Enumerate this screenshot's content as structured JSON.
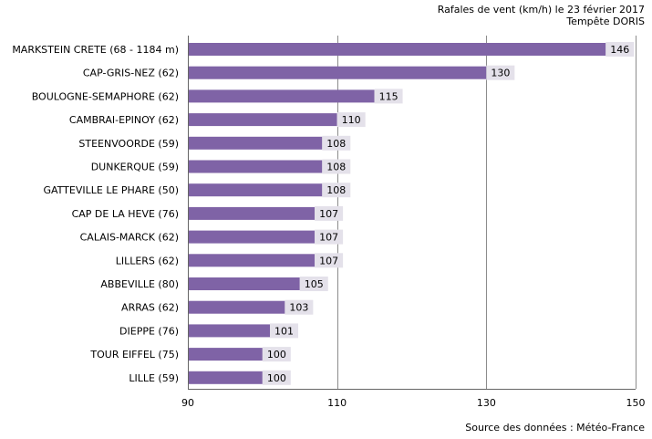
{
  "chart_data": {
    "type": "bar",
    "orientation": "horizontal",
    "title": "Rafales de vent (km/h) le 23 février 2017",
    "subtitle": "Tempête DORIS",
    "source": "Source des données : Météo-France",
    "categories": [
      "MARKSTEIN CRETE (68 - 1184 m)",
      "CAP-GRIS-NEZ (62)",
      "BOULOGNE-SEMAPHORE (62)",
      "CAMBRAI-EPINOY (62)",
      "STEENVOORDE (59)",
      "DUNKERQUE (59)",
      "GATTEVILLE LE PHARE (50)",
      "CAP DE LA HEVE (76)",
      "CALAIS-MARCK (62)",
      "LILLERS (62)",
      "ABBEVILLE (80)",
      "ARRAS (62)",
      "DIEPPE (76)",
      "TOUR EIFFEL (75)",
      "LILLE (59)"
    ],
    "values": [
      146,
      130,
      115,
      110,
      108,
      108,
      108,
      107,
      107,
      107,
      105,
      103,
      101,
      100,
      100
    ],
    "xlim": [
      90,
      150
    ],
    "xticks": [
      90,
      110,
      130,
      150
    ],
    "grid": true,
    "bar_color": "#7f63a6",
    "label_bg_color": "#e4e1ea",
    "grid_color": "#8c8c8c",
    "axis_color": "#666666"
  }
}
